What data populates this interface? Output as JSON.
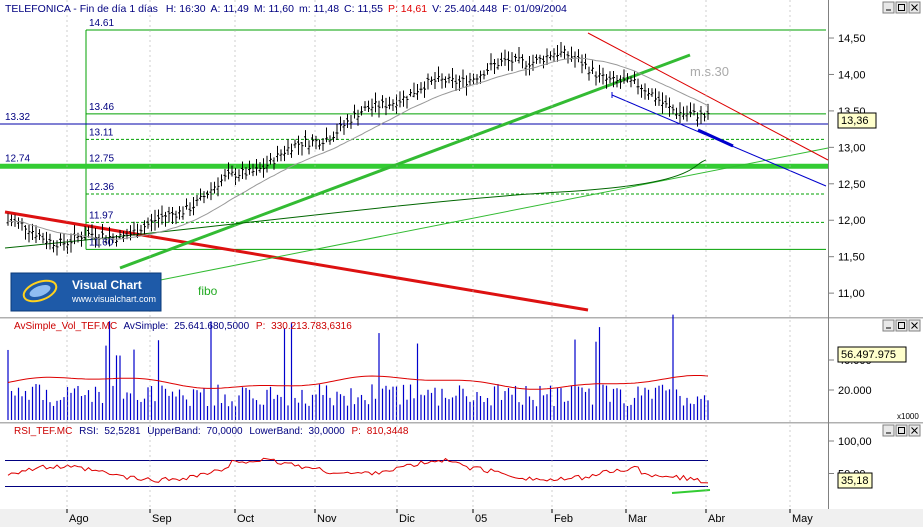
{
  "price_panel": {
    "ticker": "TELEFONICA",
    "period_label": "Fin de día 1 días",
    "fields": [
      {
        "label": "H:",
        "value": "16:30",
        "color": "#000080"
      },
      {
        "label": "A:",
        "value": "11,49",
        "color": "#000080"
      },
      {
        "label": "M:",
        "value": "11,60",
        "color": "#000080"
      },
      {
        "label": "m:",
        "value": "11,48",
        "color": "#000080"
      },
      {
        "label": "C:",
        "value": "11,55",
        "color": "#000080"
      },
      {
        "label": "P:",
        "value": "14,61",
        "color": "#e00000"
      },
      {
        "label": "V:",
        "value": "25.404.448",
        "color": "#000080"
      },
      {
        "label": "F:",
        "value": "01/09/2004",
        "color": "#000080"
      }
    ],
    "y_ticks": [
      "14,50",
      "14,00",
      "13,50",
      "13,00",
      "12,50",
      "12,00",
      "11,50",
      "11,00"
    ],
    "last_price_badge": "13,36",
    "fibo_levels": [
      "14.61",
      "13.46",
      "13.11",
      "12.75",
      "12.36",
      "11.97",
      "11.60"
    ],
    "left_levels": [
      "13.32",
      "12.74"
    ],
    "fibo_label": "fibo",
    "ma_label": "m.s.30",
    "logo_text": "Visual Chart",
    "logo_url": "www.visualchart.com"
  },
  "volume_panel": {
    "title": "AvSimple_Vol_TEF.MC",
    "param_label": "AvSimple:",
    "param_value": "25.641.680,5000",
    "p_label": "P:",
    "p_value": "330.213.783,6316",
    "y_ticks": [
      "40.000",
      "20.000"
    ],
    "last_badge": "56.497.975",
    "unit": "x1000"
  },
  "rsi_panel": {
    "title": "RSI_TEF.MC",
    "rsi_label": "RSI:",
    "rsi_value": "52,5281",
    "upper_label": "UpperBand:",
    "upper_value": "70,0000",
    "lower_label": "LowerBand:",
    "lower_value": "30,0000",
    "p_label": "P:",
    "p_value": "810,3448",
    "y_ticks": [
      "100,00",
      "50,00"
    ],
    "last_badge": "35,18"
  },
  "x_axis": {
    "labels": [
      "Ago",
      "Sep",
      "Oct",
      "Nov",
      "Dic",
      "05",
      "Feb",
      "Mar",
      "Abr",
      "May"
    ]
  },
  "colors": {
    "bars": "#000000",
    "fibo_lines": "#00a000",
    "thick_support": "#33cc33",
    "uptrend": "#33bb33",
    "downtrend_red": "#dd0000",
    "channel_blue": "#0000cc",
    "volume_bars": "#0000cc",
    "volume_ma": "#dd0000",
    "rsi_line": "#dd0000",
    "rsi_bands": "#000080",
    "ma30": "#999999"
  },
  "chart_data": [
    {
      "type": "ohlc",
      "title": "TELEFONICA",
      "ylim": [
        10.75,
        14.68
      ],
      "x": [
        "Ago",
        "Sep",
        "Oct",
        "Nov",
        "Dic",
        "05",
        "Feb",
        "Mar",
        "Abr",
        "May"
      ],
      "close_path": [
        {
          "x": "Ago",
          "y": 11.7
        },
        {
          "x": "Sep",
          "y": 11.75
        },
        {
          "x": "Oct",
          "y": 12.6
        },
        {
          "x": "Nov",
          "y": 13.2
        },
        {
          "x": "Dic",
          "y": 13.65
        },
        {
          "x": "05",
          "y": 14.0
        },
        {
          "x": "Feb",
          "y": 14.2
        },
        {
          "x": "Mar",
          "y": 13.9
        },
        {
          "x": "Abr",
          "y": 13.36
        }
      ],
      "fib_levels": [
        14.61,
        13.46,
        13.11,
        12.75,
        12.36,
        11.97,
        11.6
      ],
      "horizontal_levels": [
        13.32,
        12.74
      ],
      "series": [
        {
          "name": "m.s.30"
        }
      ]
    },
    {
      "type": "bar",
      "title": "AvSimple_Vol_TEF.MC",
      "ylim": [
        0,
        60000
      ],
      "series": [
        {
          "name": "AvSimple",
          "values": [
            25641.68
          ]
        }
      ],
      "last_value": 56497.975
    },
    {
      "type": "line",
      "title": "RSI_TEF.MC",
      "ylim": [
        0,
        100
      ],
      "series": [
        {
          "name": "RSI",
          "values": [
            52.5281
          ]
        }
      ],
      "bands": {
        "upper": 70,
        "lower": 30
      },
      "last_value": 35.18
    }
  ]
}
